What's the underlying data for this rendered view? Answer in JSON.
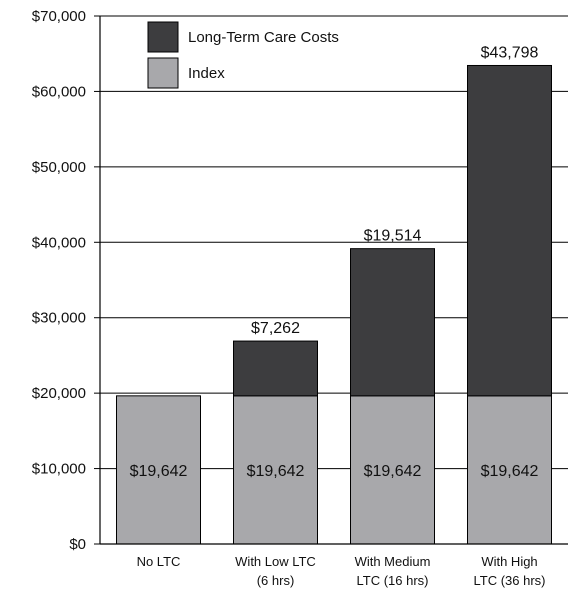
{
  "chart_data": {
    "type": "bar",
    "stacked": true,
    "categories": [
      [
        "No LTC"
      ],
      [
        "With Low LTC",
        "(6 hrs)"
      ],
      [
        "With Medium",
        "LTC (16 hrs)"
      ],
      [
        "With High",
        "LTC (36 hrs)"
      ]
    ],
    "series": [
      {
        "name": "Index",
        "color": "#a8a8ab",
        "values": [
          19642,
          19642,
          19642,
          19642
        ],
        "labels": [
          "$19,642",
          "$19,642",
          "$19,642",
          "$19,642"
        ]
      },
      {
        "name": "Long-Term Care Costs",
        "color": "#3d3d3f",
        "values": [
          0,
          7262,
          19514,
          43798
        ],
        "labels": [
          "",
          "$7,262",
          "$19,514",
          "$43,798"
        ]
      }
    ],
    "ylim": [
      0,
      70000
    ],
    "yticks": [
      0,
      10000,
      20000,
      30000,
      40000,
      50000,
      60000,
      70000
    ],
    "ytick_labels": [
      "$0",
      "$10,000",
      "$20,000",
      "$30,000",
      "$40,000",
      "$50,000",
      "$60,000",
      "$70,000"
    ],
    "grid": true,
    "legend_position": "top-left",
    "title": "",
    "xlabel": "",
    "ylabel": ""
  }
}
